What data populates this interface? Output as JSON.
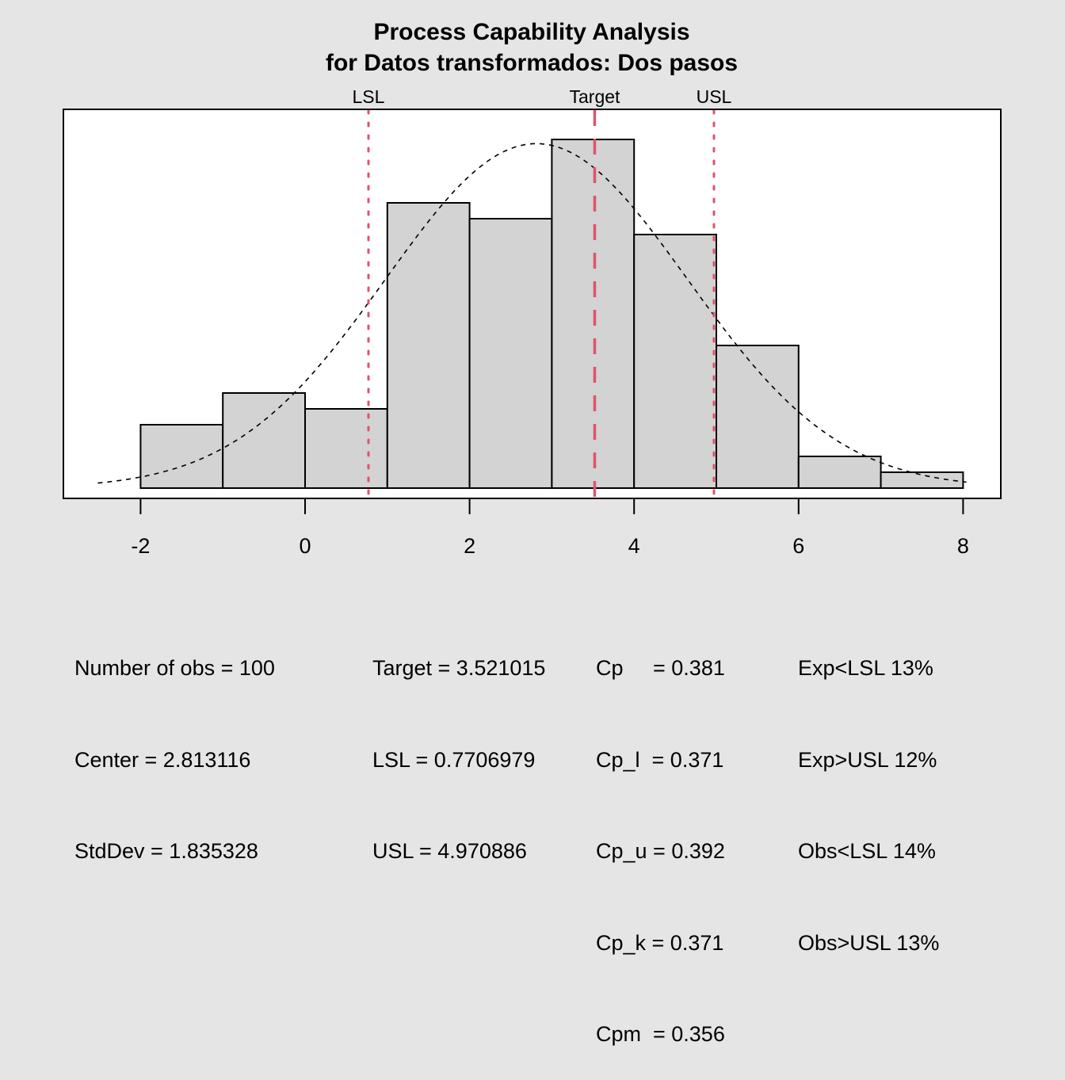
{
  "chart_data": {
    "type": "bar",
    "subtype": "histogram",
    "title": "Process Capability Analysis",
    "subtitle": "for Datos transformados: Dos pasos",
    "xlabel": "",
    "ylabel": "",
    "xlim": [
      -2.8,
      8.6
    ],
    "ylim": [
      0,
      22.8
    ],
    "grid": false,
    "x_ticks": [
      -2,
      0,
      2,
      4,
      6,
      8
    ],
    "x_tick_labels": [
      "-2",
      "0",
      "2",
      "4",
      "6",
      "8"
    ],
    "bins": [
      {
        "from": -2,
        "to": -1,
        "count": 4
      },
      {
        "from": -1,
        "to": 0,
        "count": 6
      },
      {
        "from": 0,
        "to": 1,
        "count": 5
      },
      {
        "from": 1,
        "to": 2,
        "count": 18
      },
      {
        "from": 2,
        "to": 3,
        "count": 17
      },
      {
        "from": 3,
        "to": 4,
        "count": 22
      },
      {
        "from": 4,
        "to": 5,
        "count": 16
      },
      {
        "from": 5,
        "to": 6,
        "count": 9
      },
      {
        "from": 6,
        "to": 7,
        "count": 2
      },
      {
        "from": 7,
        "to": 8,
        "count": 1
      }
    ],
    "density_curve": {
      "type": "normal",
      "mean": 2.813116,
      "sd": 1.835328,
      "n": 100,
      "binwidth": 1,
      "x_range": [
        -2.52,
        8.04
      ]
    },
    "reference_lines": [
      {
        "label": "LSL",
        "value": 0.7706979,
        "style": "dotted"
      },
      {
        "label": "Target",
        "value": 3.521015,
        "style": "dashed"
      },
      {
        "label": "USL",
        "value": 4.970886,
        "style": "dotted"
      }
    ],
    "colors": {
      "bar_fill": "#d3d3d3",
      "bar_stroke": "#000000",
      "spec_line": "#df536b",
      "background": "#e5e5e5",
      "plot_bg": "#ffffff"
    }
  },
  "stats": {
    "col1": [
      "Number of obs = 100",
      "Center = 2.813116",
      "StdDev = 1.835328"
    ],
    "col2": [
      "Target = 3.521015",
      "LSL = 0.7706979",
      "USL = 4.970886"
    ],
    "col3": [
      "Cp     = 0.381",
      "Cp_l  = 0.371",
      "Cp_u = 0.392",
      "Cp_k = 0.371",
      "Cpm  = 0.356"
    ],
    "col4": [
      "Exp<LSL 13%",
      "Exp>USL 12%",
      "Obs<LSL 14%",
      "Obs>USL 13%"
    ]
  }
}
